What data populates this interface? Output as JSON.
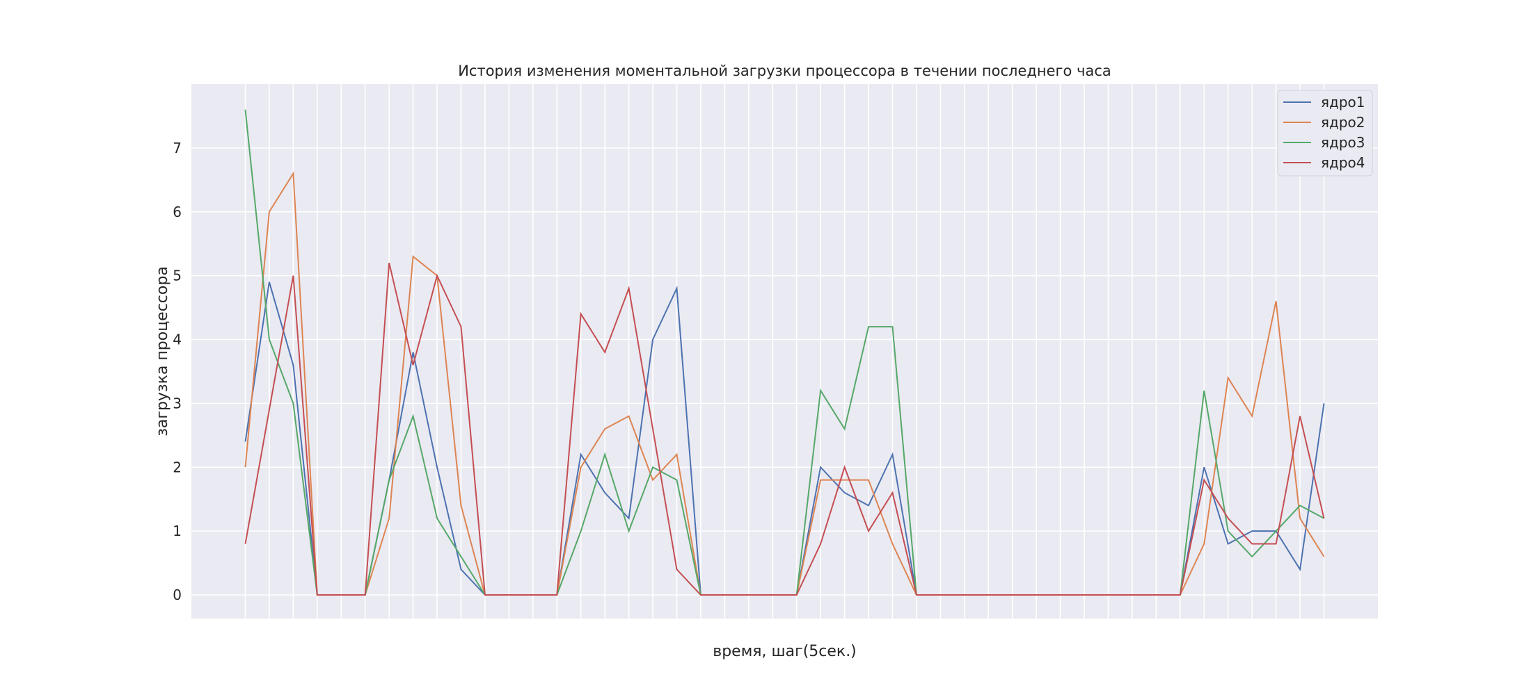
{
  "chart_data": {
    "type": "line",
    "title": "История изменения моментальной загрузки процессора в течении последнего часа",
    "xlabel": "время, шаг(5сек.)",
    "ylabel": "загрузка процессора",
    "ylim": [
      -0.37,
      8.0
    ],
    "yticks": [
      0,
      1,
      2,
      3,
      4,
      5,
      6,
      7
    ],
    "x": [
      0,
      1,
      2,
      3,
      4,
      5,
      6,
      7,
      8,
      9,
      10,
      11,
      12,
      13,
      14,
      15,
      16,
      17,
      18,
      19,
      20,
      21,
      22,
      23,
      24,
      25,
      26,
      27,
      28,
      29,
      30,
      31,
      32,
      33,
      34,
      35,
      36,
      37,
      38,
      39,
      40,
      41,
      42,
      43,
      44,
      45
    ],
    "xlim": [
      -2.25,
      47.25
    ],
    "grid": true,
    "legend_position": "top-right",
    "series": [
      {
        "name": "ядро1",
        "color": "#4c72b0",
        "values": [
          2.4,
          4.9,
          3.6,
          0,
          0,
          0,
          1.8,
          3.8,
          2.0,
          0.4,
          0,
          0,
          0,
          0,
          2.2,
          1.6,
          1.2,
          4.0,
          4.8,
          0,
          0,
          0,
          0,
          0,
          2.0,
          1.6,
          1.4,
          2.2,
          0,
          0,
          0,
          0,
          0,
          0,
          0,
          0,
          0,
          0,
          0,
          0,
          2.0,
          0.8,
          1.0,
          1.0,
          0.4,
          3.0
        ]
      },
      {
        "name": "ядро2",
        "color": "#dd8452",
        "values": [
          2.0,
          6.0,
          6.6,
          0,
          0,
          0,
          1.2,
          5.3,
          5.0,
          1.4,
          0,
          0,
          0,
          0,
          2.0,
          2.6,
          2.8,
          1.8,
          2.2,
          0,
          0,
          0,
          0,
          0,
          1.8,
          1.8,
          1.8,
          0.8,
          0,
          0,
          0,
          0,
          0,
          0,
          0,
          0,
          0,
          0,
          0,
          0,
          0.8,
          3.4,
          2.8,
          4.6,
          1.2,
          0.6
        ]
      },
      {
        "name": "ядро3",
        "color": "#55a868",
        "values": [
          7.6,
          4.0,
          3.0,
          0,
          0,
          0,
          1.8,
          2.8,
          1.2,
          0.6,
          0,
          0,
          0,
          0,
          1.0,
          2.2,
          1.0,
          2.0,
          1.8,
          0,
          0,
          0,
          0,
          0,
          3.2,
          2.6,
          4.2,
          4.2,
          0,
          0,
          0,
          0,
          0,
          0,
          0,
          0,
          0,
          0,
          0,
          0,
          3.2,
          1.0,
          0.6,
          1.0,
          1.4,
          1.2
        ]
      },
      {
        "name": "ядро4",
        "color": "#c44e52",
        "values": [
          0.8,
          2.9,
          5.0,
          0,
          0,
          0,
          5.2,
          3.6,
          5.0,
          4.2,
          0,
          0,
          0,
          0,
          4.4,
          3.8,
          4.8,
          2.6,
          0.4,
          0,
          0,
          0,
          0,
          0,
          0.8,
          2.0,
          1.0,
          1.6,
          0,
          0,
          0,
          0,
          0,
          0,
          0,
          0,
          0,
          0,
          0,
          0,
          1.8,
          1.2,
          0.8,
          0.8,
          2.8,
          1.2
        ]
      }
    ]
  },
  "colors": {
    "plot_background": "#eaeaf2",
    "grid": "#ffffff",
    "text": "#262626"
  }
}
